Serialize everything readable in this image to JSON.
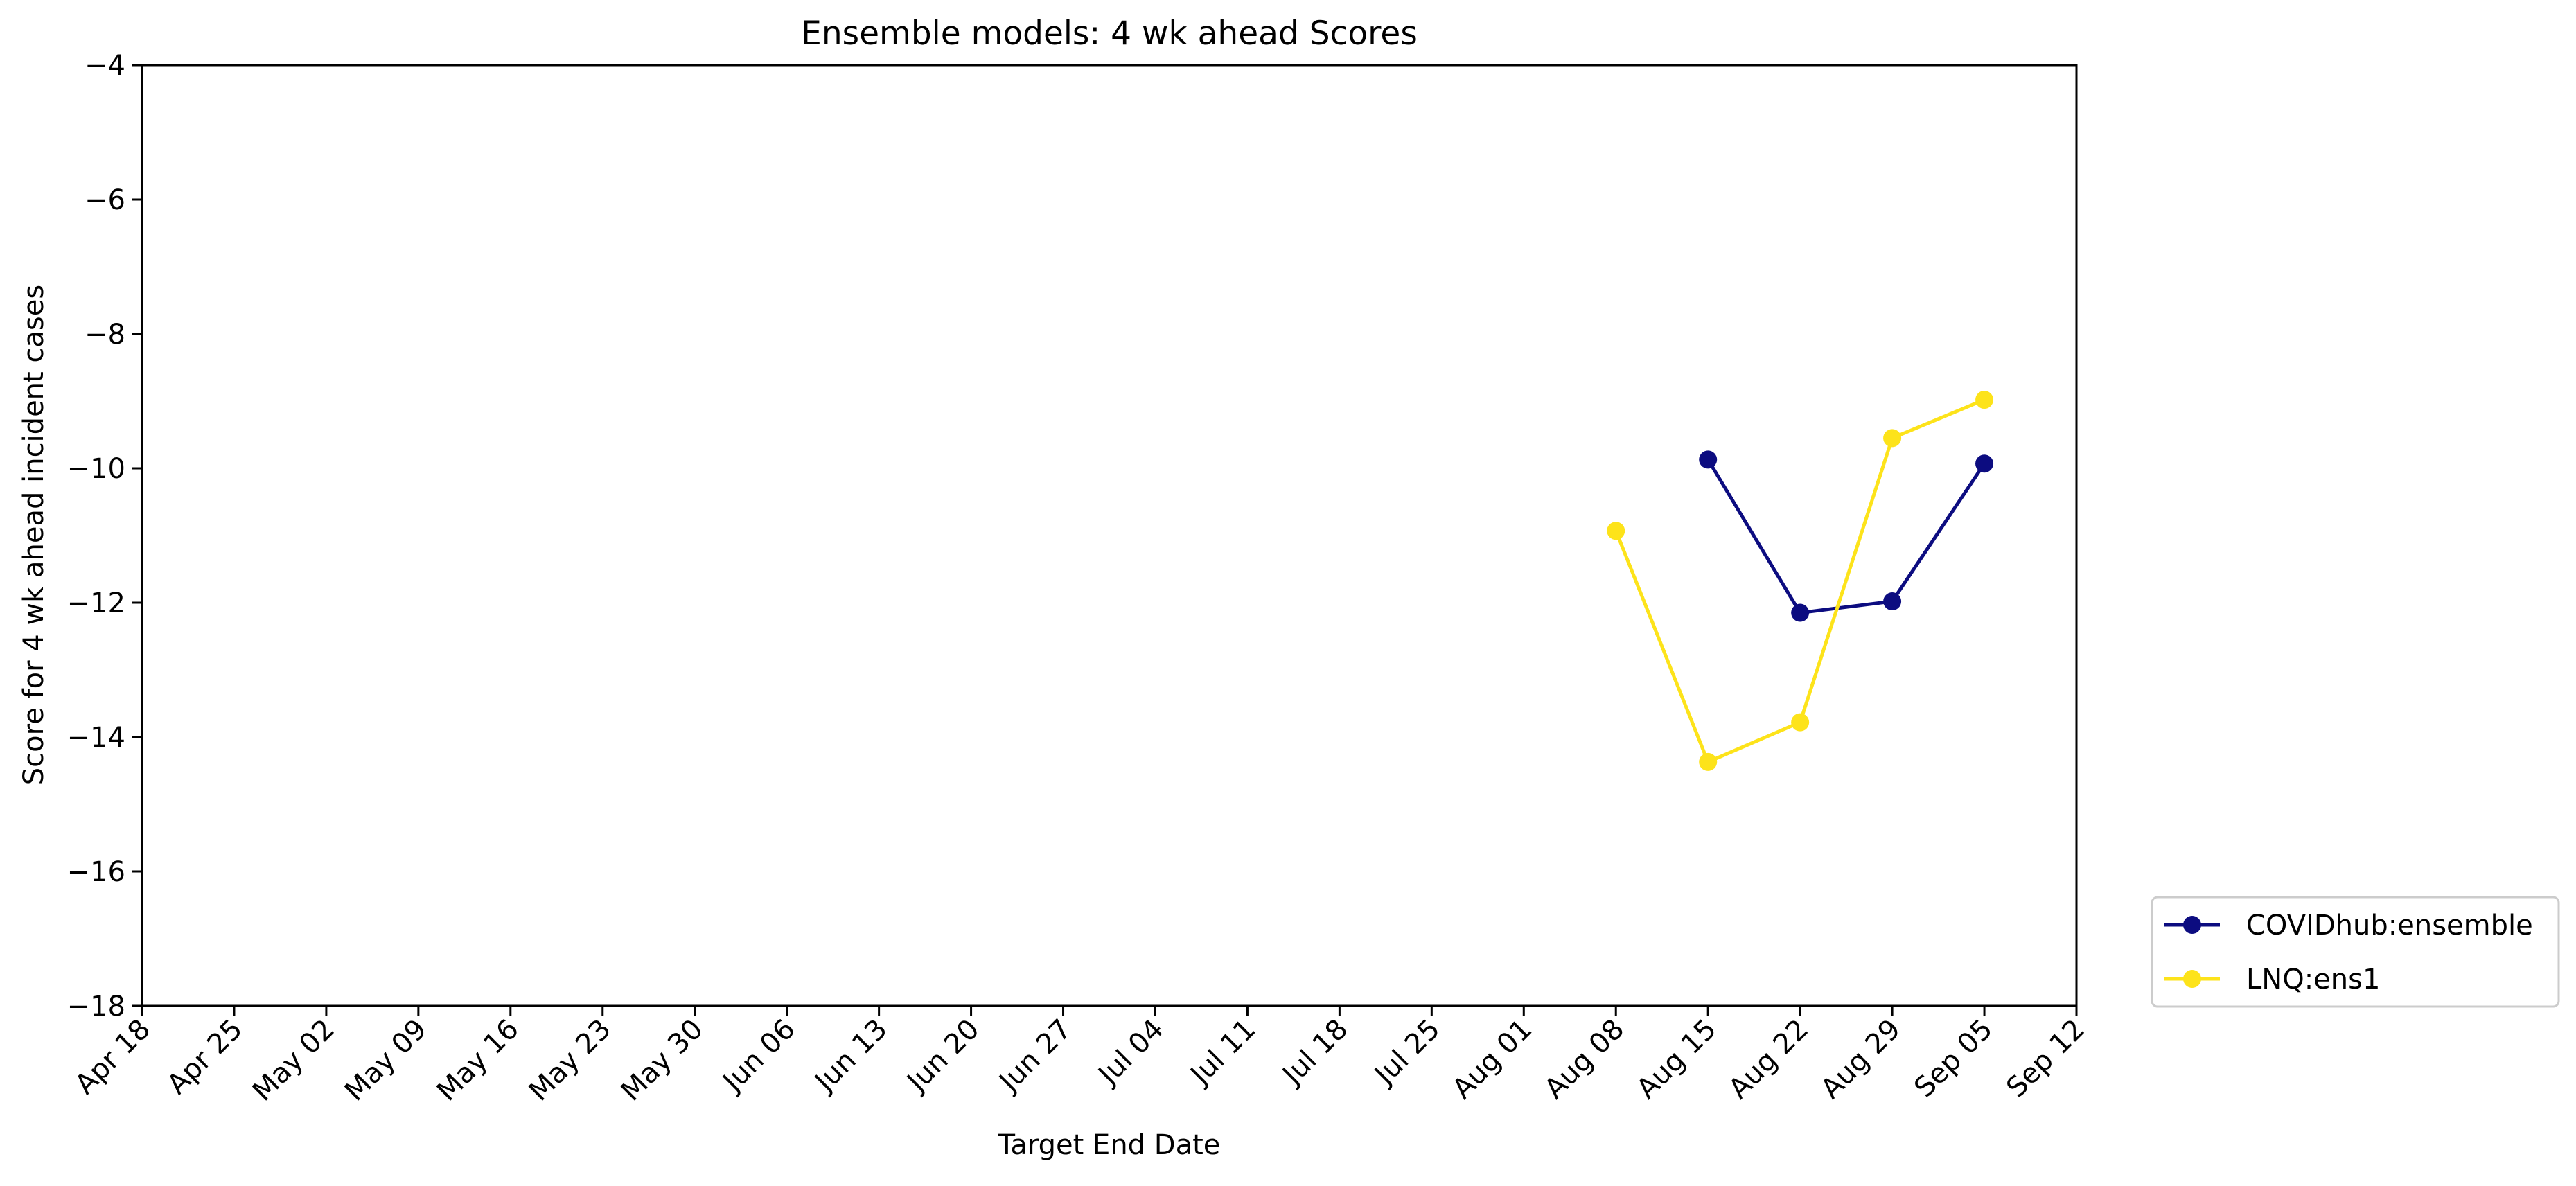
{
  "chart_data": {
    "type": "line",
    "title": "Ensemble models: 4 wk ahead Scores",
    "xlabel": "Target End Date",
    "ylabel": "Score for 4 wk ahead incident cases",
    "ylim": [
      -18,
      -4
    ],
    "yticks": [
      -4,
      -6,
      -8,
      -10,
      -12,
      -14,
      -16,
      -18
    ],
    "ytick_labels": [
      "−4",
      "−6",
      "−8",
      "−10",
      "−12",
      "−14",
      "−16",
      "−18"
    ],
    "xlim": [
      "2021-04-18",
      "2021-09-12"
    ],
    "xticks": [
      "2021-04-18",
      "2021-04-25",
      "2021-05-02",
      "2021-05-09",
      "2021-05-16",
      "2021-05-23",
      "2021-05-30",
      "2021-06-06",
      "2021-06-13",
      "2021-06-20",
      "2021-06-27",
      "2021-07-04",
      "2021-07-11",
      "2021-07-18",
      "2021-07-25",
      "2021-08-01",
      "2021-08-08",
      "2021-08-15",
      "2021-08-22",
      "2021-08-29",
      "2021-09-05",
      "2021-09-12"
    ],
    "xtick_labels": [
      "Apr 18",
      "Apr 25",
      "May 02",
      "May 09",
      "May 16",
      "May 23",
      "May 30",
      "Jun 06",
      "Jun 13",
      "Jun 20",
      "Jun 27",
      "Jul 04",
      "Jul 11",
      "Jul 18",
      "Jul 25",
      "Aug 01",
      "Aug 08",
      "Aug 15",
      "Aug 22",
      "Aug 29",
      "Sep 05",
      "Sep 12"
    ],
    "grid": false,
    "legend_position": "lower-right-outside",
    "series": [
      {
        "name": "COVIDhub:ensemble",
        "color": "#0c0c80",
        "x": [
          "2021-08-15",
          "2021-08-22",
          "2021-08-29",
          "2021-09-05"
        ],
        "values": [
          -9.87,
          -12.15,
          -11.98,
          -9.93
        ]
      },
      {
        "name": "LNQ:ens1",
        "color": "#fde31a",
        "x": [
          "2021-08-08",
          "2021-08-15",
          "2021-08-22",
          "2021-08-29",
          "2021-09-05"
        ],
        "values": [
          -10.93,
          -14.37,
          -13.78,
          -9.55,
          -8.98
        ]
      }
    ]
  }
}
